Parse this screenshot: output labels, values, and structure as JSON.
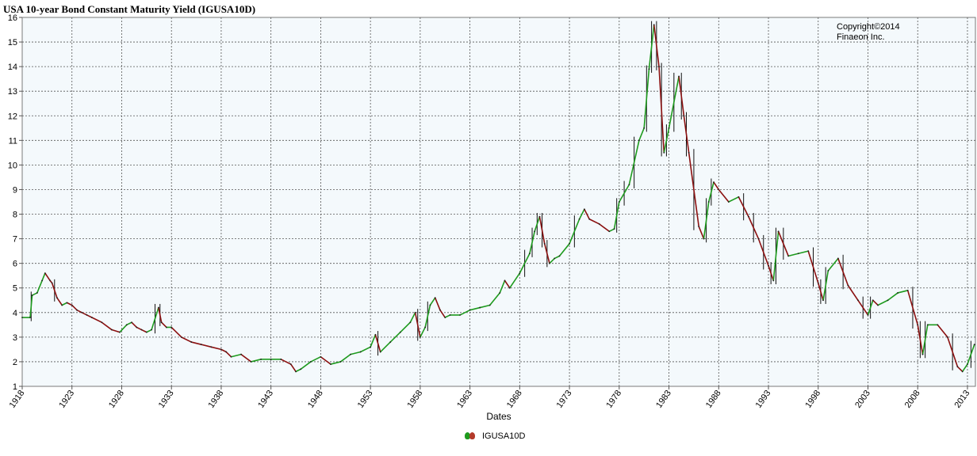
{
  "chart_data": {
    "type": "line",
    "title": "USA 10-year Bond Constant Maturity Yield (IGUSA10D)",
    "xlabel": "Dates",
    "ylabel": "",
    "xlim": [
      1918.0,
      2013.8
    ],
    "ylim": [
      1,
      16
    ],
    "yticks": [
      1,
      2,
      3,
      4,
      5,
      6,
      7,
      8,
      9,
      10,
      11,
      12,
      13,
      14,
      15,
      16
    ],
    "xticks": [
      "1918",
      "1923",
      "1928",
      "1933",
      "1938",
      "1943",
      "1948",
      "1953",
      "1958",
      "1963",
      "1968",
      "1973",
      "1978",
      "1983",
      "1988",
      "1993",
      "1998",
      "2003",
      "2008",
      "2013"
    ],
    "grid": true,
    "legend_position": "bottom-center",
    "annotation": [
      "Copyright©2014",
      "Finaeon Inc."
    ],
    "colors": {
      "rising": "#1e9b1e",
      "falling": "#8b1010",
      "wick": "#111111",
      "plot_bg": "#f4f9fc",
      "grid": "#555555"
    },
    "series": [
      {
        "name": "IGUSA10D",
        "x": [
          1918.0,
          1918.8,
          1919.0,
          1919.5,
          1920.0,
          1920.3,
          1920.8,
          1921.0,
          1921.5,
          1922.0,
          1922.5,
          1923.0,
          1923.5,
          1924.0,
          1924.5,
          1925.0,
          1926.0,
          1927.0,
          1927.8,
          1928.5,
          1929.0,
          1929.5,
          1930.0,
          1930.5,
          1931.0,
          1931.7,
          1932.0,
          1932.5,
          1933.0,
          1934.0,
          1935.0,
          1936.0,
          1937.0,
          1938.0,
          1938.5,
          1939.0,
          1940.0,
          1941.0,
          1942.0,
          1943.0,
          1944.0,
          1945.0,
          1945.5,
          1946.0,
          1947.0,
          1948.0,
          1949.0,
          1950.0,
          1951.0,
          1952.0,
          1953.0,
          1953.5,
          1954.0,
          1955.0,
          1956.0,
          1957.0,
          1957.5,
          1958.0,
          1958.5,
          1959.0,
          1959.5,
          1960.0,
          1960.5,
          1961.0,
          1962.0,
          1963.0,
          1964.0,
          1965.0,
          1966.0,
          1966.5,
          1967.0,
          1968.0,
          1969.0,
          1969.5,
          1970.0,
          1970.5,
          1971.0,
          1971.5,
          1972.0,
          1973.0,
          1974.0,
          1974.5,
          1975.0,
          1976.0,
          1977.0,
          1977.5,
          1978.0,
          1979.0,
          1980.0,
          1980.5,
          1981.0,
          1981.5,
          1982.0,
          1982.5,
          1983.0,
          1984.0,
          1984.5,
          1985.0,
          1986.0,
          1986.5,
          1987.0,
          1987.5,
          1988.0,
          1989.0,
          1990.0,
          1991.0,
          1992.0,
          1993.0,
          1993.5,
          1994.0,
          1995.0,
          1996.0,
          1997.0,
          1998.0,
          1998.5,
          1999.0,
          2000.0,
          2001.0,
          2002.0,
          2003.0,
          2003.5,
          2004.0,
          2005.0,
          2006.0,
          2007.0,
          2008.0,
          2008.5,
          2009.0,
          2010.0,
          2011.0,
          2012.0,
          2012.5,
          2013.0,
          2013.7
        ],
        "values": [
          3.8,
          3.8,
          4.7,
          4.8,
          5.3,
          5.6,
          5.3,
          5.2,
          4.6,
          4.3,
          4.4,
          4.3,
          4.1,
          4.0,
          3.9,
          3.8,
          3.6,
          3.3,
          3.2,
          3.5,
          3.6,
          3.4,
          3.3,
          3.2,
          3.3,
          4.2,
          3.6,
          3.4,
          3.4,
          3.0,
          2.8,
          2.7,
          2.6,
          2.5,
          2.4,
          2.2,
          2.3,
          2.0,
          2.1,
          2.1,
          2.1,
          1.9,
          1.6,
          1.7,
          2.0,
          2.2,
          1.9,
          2.0,
          2.3,
          2.4,
          2.6,
          3.1,
          2.4,
          2.8,
          3.2,
          3.6,
          4.0,
          3.0,
          3.4,
          4.3,
          4.6,
          4.1,
          3.8,
          3.9,
          3.9,
          4.1,
          4.2,
          4.3,
          4.8,
          5.3,
          5.0,
          5.6,
          6.4,
          7.3,
          7.9,
          6.8,
          6.0,
          6.2,
          6.3,
          6.8,
          7.8,
          8.2,
          7.8,
          7.6,
          7.3,
          7.4,
          8.5,
          9.2,
          11.0,
          11.5,
          13.9,
          15.7,
          14.0,
          10.5,
          11.5,
          13.6,
          12.0,
          10.5,
          7.5,
          7.0,
          8.5,
          9.3,
          9.0,
          8.5,
          8.7,
          7.9,
          7.0,
          5.9,
          5.3,
          7.3,
          6.3,
          6.4,
          6.5,
          5.2,
          4.5,
          5.7,
          6.2,
          5.1,
          4.5,
          3.9,
          4.5,
          4.3,
          4.5,
          4.8,
          4.9,
          3.5,
          2.3,
          3.5,
          3.5,
          3.0,
          1.8,
          1.6,
          1.9,
          2.7
        ]
      }
    ]
  },
  "legend": {
    "label": "IGUSA10D",
    "icon": "legend-series-icon"
  }
}
